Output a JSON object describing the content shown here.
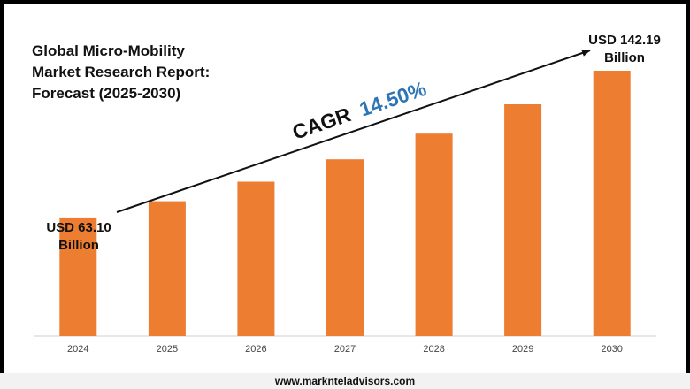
{
  "title_lines": [
    "Global Micro-Mobility",
    "Market Research Report:",
    "Forecast (2025-2030)"
  ],
  "footer": "www.marknteladvisors.com",
  "cagr": {
    "label": "CAGR",
    "value": "14.50%"
  },
  "annotations": {
    "start_line1": "USD 63.10",
    "start_line2": "Billion",
    "end_line1": "USD 142.19",
    "end_line2": "Billion"
  },
  "colors": {
    "bar": "#ed7d31",
    "cagr_value": "#2e75b6",
    "cagr_label": "#111111",
    "arrow": "#111111"
  },
  "chart_data": {
    "type": "bar",
    "title": "Global Micro-Mobility Market Research Report: Forecast (2025-2030)",
    "categories": [
      "2024",
      "2025",
      "2026",
      "2027",
      "2028",
      "2029",
      "2030"
    ],
    "values": [
      63.1,
      72.25,
      82.73,
      94.72,
      108.46,
      124.19,
      142.19
    ],
    "unit": "USD Billion",
    "ylim": [
      0,
      200
    ],
    "grid": false,
    "legend": "none"
  }
}
